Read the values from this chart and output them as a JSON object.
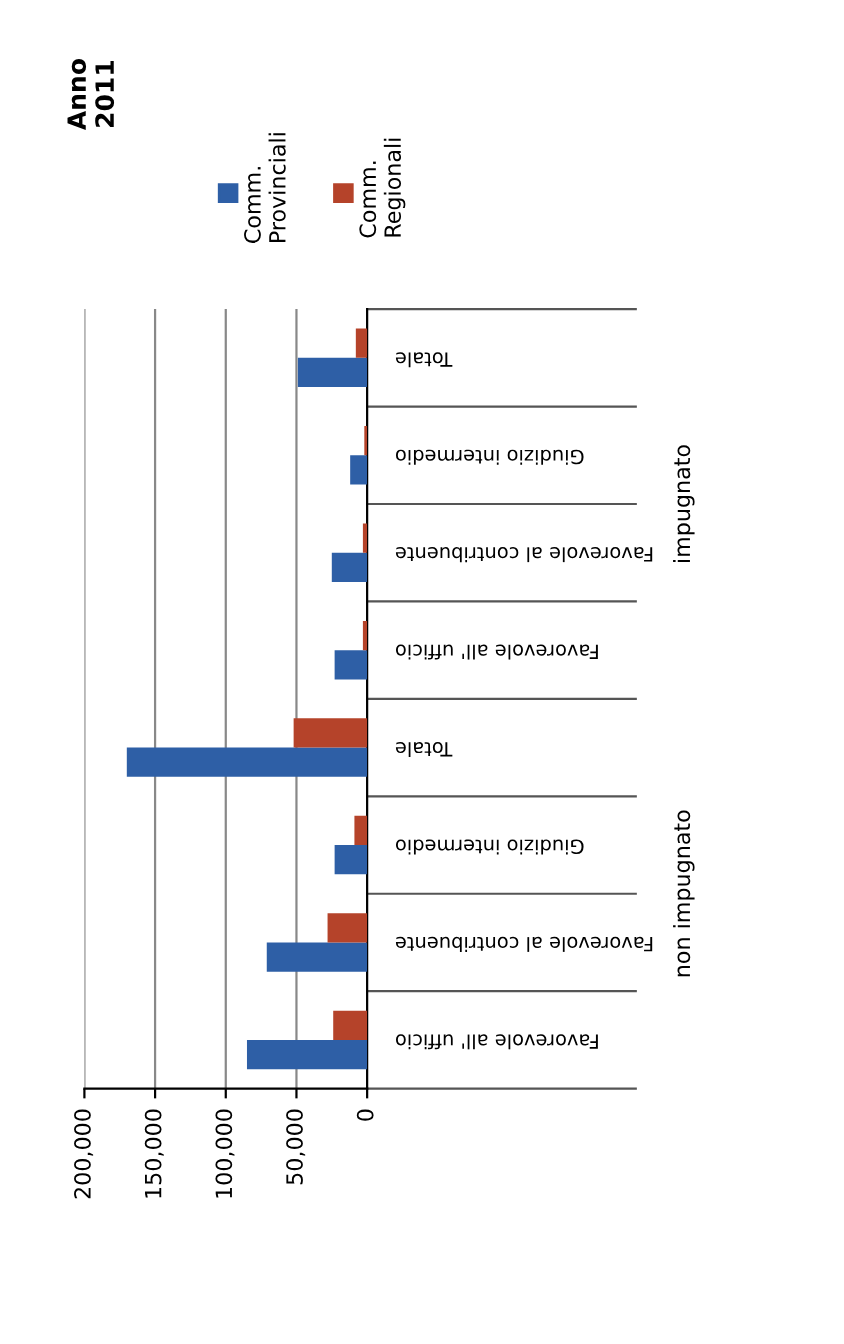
{
  "chart_data": {
    "type": "bar",
    "orientation": "horizontal",
    "title": "Anno 2011",
    "categories": [
      "Totale",
      "Giudizio intermedio",
      "Favorevole al contribuente",
      "Favorevole all' ufficio",
      "Totale",
      "Giudizio intermedio",
      "Favorevole al contribuente",
      "Favorevole all' ufficio"
    ],
    "series": [
      {
        "name": "Comm. Provinciali",
        "color": "#2e5fa6",
        "values": [
          49000,
          12000,
          25000,
          23000,
          170000,
          23000,
          71000,
          85000
        ]
      },
      {
        "name": "Comm. Regionali",
        "color": "#b5432a",
        "values": [
          8000,
          2000,
          3000,
          3000,
          52000,
          9000,
          28000,
          24000
        ]
      }
    ],
    "annotations": [
      "impugnato",
      "non impugnato"
    ],
    "xlim": [
      200000,
      0
    ],
    "xticks": [
      {
        "value": 200000,
        "label": "200,000"
      },
      {
        "value": 150000,
        "label": "150,000"
      },
      {
        "value": 100000,
        "label": "100,000"
      },
      {
        "value": 50000,
        "label": "50,000"
      },
      0
    ],
    "grid": "x",
    "legend": "top"
  }
}
